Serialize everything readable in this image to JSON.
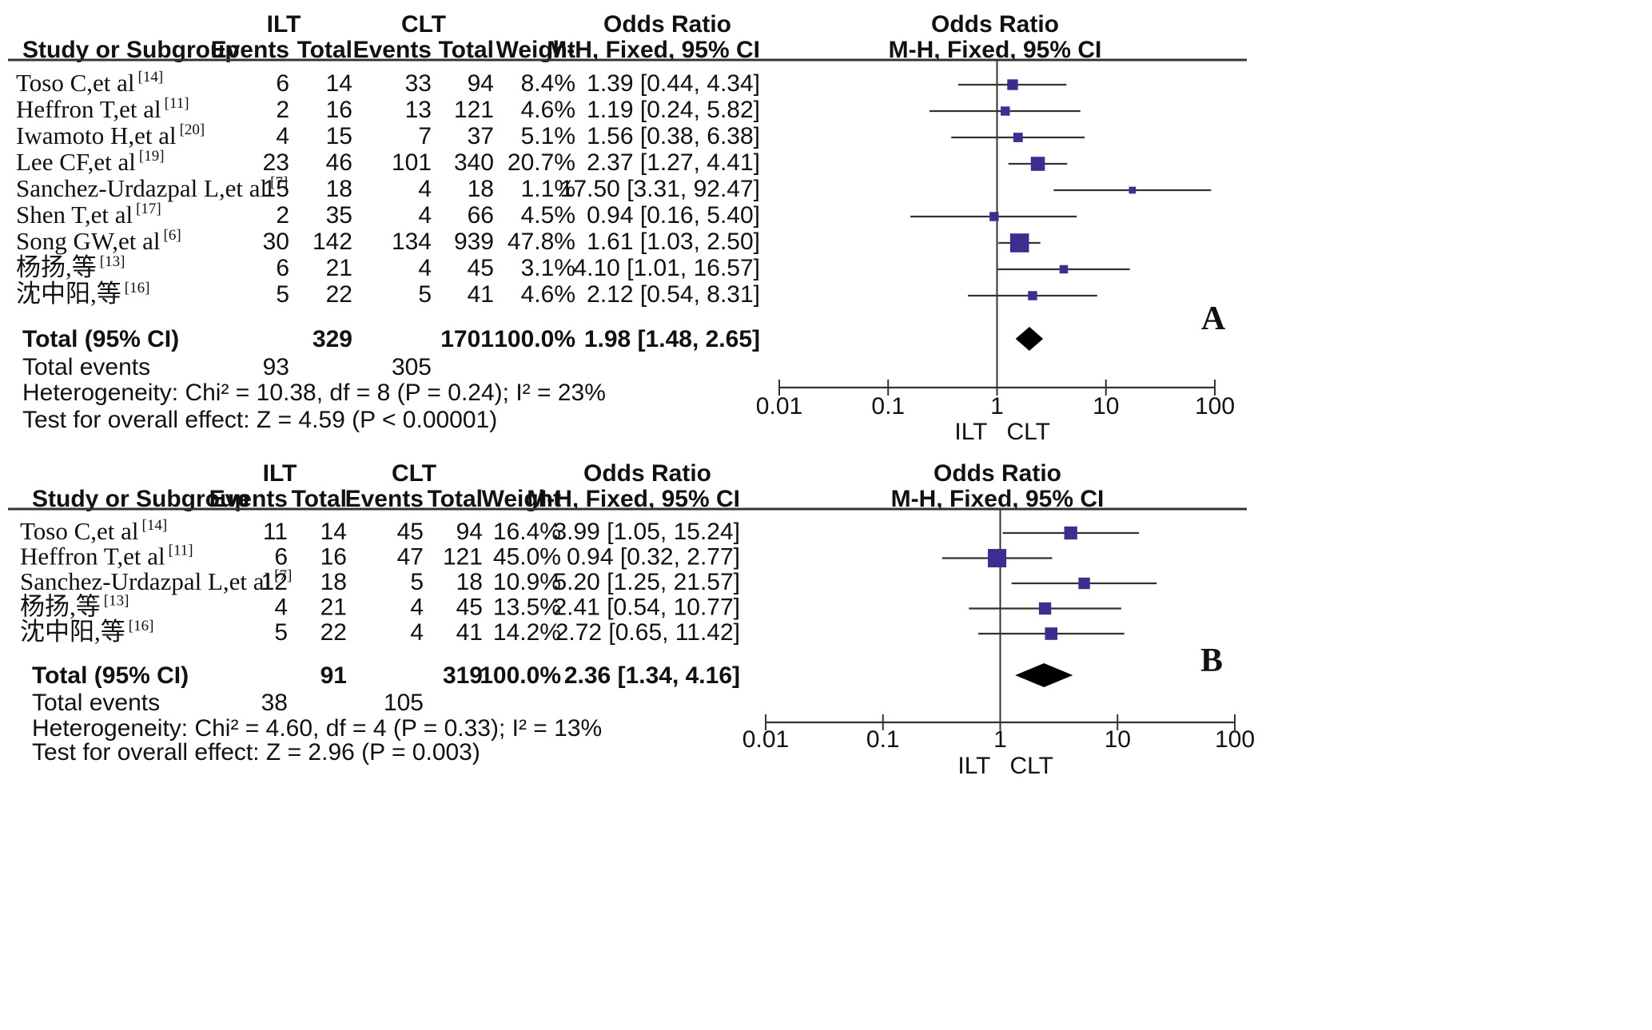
{
  "chart_data": [
    {
      "type": "forest",
      "panel_label": "A",
      "headers": {
        "group1": "ILT",
        "group2": "CLT",
        "odds_ratio": "Odds Ratio",
        "study": "Study or Subgroup",
        "events": "Events",
        "total": "Total",
        "weight": "Weight",
        "method": "M-H, Fixed, 95% CI",
        "plot_title": "Odds Ratio",
        "plot_method": "M-H, Fixed, 95% CI"
      },
      "studies": [
        {
          "name": "Toso C,et al",
          "ref": "[14]",
          "e1": "6",
          "t1": "14",
          "e2": "33",
          "t2": "94",
          "weight_label": "8.4%",
          "weight": 8.4,
          "ci_label": "1.39 [0.44, 4.34]",
          "or": 1.39,
          "lo": 0.44,
          "hi": 4.34
        },
        {
          "name": "Heffron T,et al",
          "ref": "[11]",
          "e1": "2",
          "t1": "16",
          "e2": "13",
          "t2": "121",
          "weight_label": "4.6%",
          "weight": 4.6,
          "ci_label": "1.19 [0.24, 5.82]",
          "or": 1.19,
          "lo": 0.24,
          "hi": 5.82
        },
        {
          "name": "Iwamoto H,et al",
          "ref": "[20]",
          "e1": "4",
          "t1": "15",
          "e2": "7",
          "t2": "37",
          "weight_label": "5.1%",
          "weight": 5.1,
          "ci_label": "1.56 [0.38, 6.38]",
          "or": 1.56,
          "lo": 0.38,
          "hi": 6.38
        },
        {
          "name": "Lee CF,et al",
          "ref": "[19]",
          "e1": "23",
          "t1": "46",
          "e2": "101",
          "t2": "340",
          "weight_label": "20.7%",
          "weight": 20.7,
          "ci_label": "2.37 [1.27, 4.41]",
          "or": 2.37,
          "lo": 1.27,
          "hi": 4.41
        },
        {
          "name": "Sanchez-Urdazpal L,et al",
          "ref": "[7]",
          "e1": "15",
          "t1": "18",
          "e2": "4",
          "t2": "18",
          "weight_label": "1.1%",
          "weight": 1.1,
          "ci_label": "17.50 [3.31, 92.47]",
          "or": 17.5,
          "lo": 3.31,
          "hi": 92.47
        },
        {
          "name": "Shen T,et al",
          "ref": "[17]",
          "e1": "2",
          "t1": "35",
          "e2": "4",
          "t2": "66",
          "weight_label": "4.5%",
          "weight": 4.5,
          "ci_label": "0.94 [0.16, 5.40]",
          "or": 0.94,
          "lo": 0.16,
          "hi": 5.4
        },
        {
          "name": "Song GW,et al",
          "ref": "[6]",
          "e1": "30",
          "t1": "142",
          "e2": "134",
          "t2": "939",
          "weight_label": "47.8%",
          "weight": 47.8,
          "ci_label": "1.61 [1.03, 2.50]",
          "or": 1.61,
          "lo": 1.03,
          "hi": 2.5
        },
        {
          "name": "杨扬,等",
          "ref": "[13]",
          "e1": "6",
          "t1": "21",
          "e2": "4",
          "t2": "45",
          "weight_label": "3.1%",
          "weight": 3.1,
          "ci_label": "4.10 [1.01, 16.57]",
          "or": 4.1,
          "lo": 1.01,
          "hi": 16.57
        },
        {
          "name": "沈中阳,等",
          "ref": "[16]",
          "e1": "5",
          "t1": "22",
          "e2": "5",
          "t2": "41",
          "weight_label": "4.6%",
          "weight": 4.6,
          "ci_label": "2.12 [0.54, 8.31]",
          "or": 2.12,
          "lo": 0.54,
          "hi": 8.31
        }
      ],
      "total": {
        "label": "Total (95% CI)",
        "t1": "329",
        "t2": "1701",
        "weight": "100.0%",
        "ci_label": "1.98 [1.48, 2.65]",
        "or": 1.98,
        "lo": 1.48,
        "hi": 2.65
      },
      "total_events": {
        "label": "Total events",
        "e1": "93",
        "e2": "305"
      },
      "heterogeneity": "Heterogeneity: Chi² = 10.38, df = 8 (P = 0.24); I² = 23%",
      "overall_effect": "Test for overall effect: Z = 4.59 (P < 0.00001)",
      "x_axis": {
        "scale": "log",
        "range": [
          0.01,
          100
        ],
        "ticks": [
          0.01,
          0.1,
          1,
          10,
          100
        ],
        "tick_labels": [
          "0.01",
          "0.1",
          "1",
          "10",
          "100"
        ]
      },
      "favours": [
        "ILT",
        "CLT"
      ]
    },
    {
      "type": "forest",
      "panel_label": "B",
      "headers": {
        "group1": "ILT",
        "group2": "CLT",
        "odds_ratio": "Odds Ratio",
        "study": "Study or Subgroup",
        "events": "Events",
        "total": "Total",
        "weight": "Weight",
        "method": "M-H, Fixed, 95% CI",
        "plot_title": "Odds Ratio",
        "plot_method": "M-H, Fixed, 95% CI"
      },
      "studies": [
        {
          "name": "Toso C,et al",
          "ref": "[14]",
          "e1": "11",
          "t1": "14",
          "e2": "45",
          "t2": "94",
          "weight_label": "16.4%",
          "weight": 16.4,
          "ci_label": "3.99 [1.05, 15.24]",
          "or": 3.99,
          "lo": 1.05,
          "hi": 15.24
        },
        {
          "name": "Heffron T,et al",
          "ref": "[11]",
          "e1": "6",
          "t1": "16",
          "e2": "47",
          "t2": "121",
          "weight_label": "45.0%",
          "weight": 45.0,
          "ci_label": "0.94 [0.32, 2.77]",
          "or": 0.94,
          "lo": 0.32,
          "hi": 2.77
        },
        {
          "name": "Sanchez-Urdazpal L,et al",
          "ref": "[7]",
          "e1": "12",
          "t1": "18",
          "e2": "5",
          "t2": "18",
          "weight_label": "10.9%",
          "weight": 10.9,
          "ci_label": "5.20 [1.25, 21.57]",
          "or": 5.2,
          "lo": 1.25,
          "hi": 21.57
        },
        {
          "name": "杨扬,等",
          "ref": "[13]",
          "e1": "4",
          "t1": "21",
          "e2": "4",
          "t2": "45",
          "weight_label": "13.5%",
          "weight": 13.5,
          "ci_label": "2.41 [0.54, 10.77]",
          "or": 2.41,
          "lo": 0.54,
          "hi": 10.77
        },
        {
          "name": "沈中阳,等",
          "ref": "[16]",
          "e1": "5",
          "t1": "22",
          "e2": "4",
          "t2": "41",
          "weight_label": "14.2%",
          "weight": 14.2,
          "ci_label": "2.72 [0.65, 11.42]",
          "or": 2.72,
          "lo": 0.65,
          "hi": 11.42
        }
      ],
      "total": {
        "label": "Total (95% CI)",
        "t1": "91",
        "t2": "319",
        "weight": "100.0%",
        "ci_label": "2.36 [1.34, 4.16]",
        "or": 2.36,
        "lo": 1.34,
        "hi": 4.16
      },
      "total_events": {
        "label": "Total events",
        "e1": "38",
        "e2": "105"
      },
      "heterogeneity": "Heterogeneity: Chi² = 4.60, df = 4 (P = 0.33); I² = 13%",
      "overall_effect": "Test for overall effect: Z = 2.96 (P = 0.003)",
      "x_axis": {
        "scale": "log",
        "range": [
          0.01,
          100
        ],
        "ticks": [
          0.01,
          0.1,
          1,
          10,
          100
        ],
        "tick_labels": [
          "0.01",
          "0.1",
          "1",
          "10",
          "100"
        ]
      },
      "favours": [
        "ILT",
        "CLT"
      ]
    }
  ],
  "colors": {
    "text": "#111111",
    "line": "#333333",
    "marker": "#3a2f8f",
    "diamond": "#000000"
  }
}
